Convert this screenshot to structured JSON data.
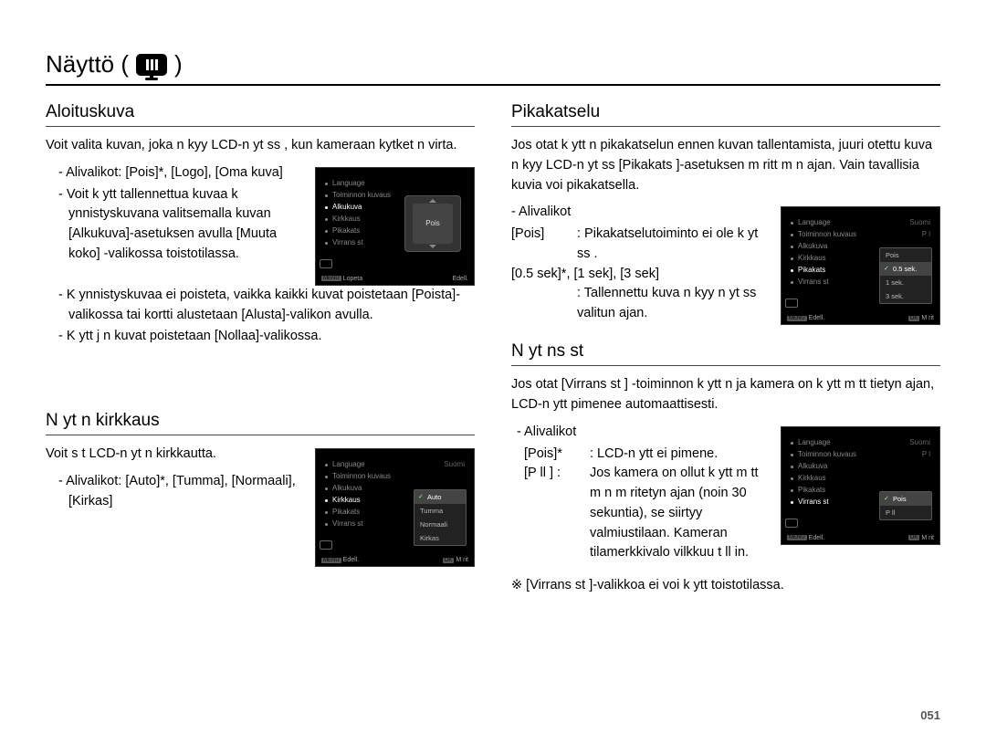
{
  "page": {
    "title_prefix": "Näyttö (",
    "title_suffix": ")",
    "number": "051"
  },
  "left": {
    "sec1": {
      "title": "Aloituskuva",
      "intro": "Voit valita kuvan, joka n kyy LCD-n yt ss , kun kameraan kytket  n virta.",
      "items": [
        "Alivalikot: [Pois]*, [Logo], [Oma kuva]",
        "Voit k ytt   tallennettua kuvaa k ynnistyskuvana valitsemalla kuvan [Alkukuva]-asetuksen avulla [Muuta koko] -valikossa toistotilassa.",
        "K ynnistyskuvaa ei poisteta, vaikka kaikki kuvat poistetaan [Poista]-valikossa tai kortti alustetaan [Alusta]-valikon avulla.",
        "K ytt j n kuvat poistetaan [Nollaa]-valikossa."
      ],
      "lcd": {
        "menu": [
          {
            "label": "Language",
            "val": ""
          },
          {
            "label": "Toiminnon kuvaus",
            "val": ""
          },
          {
            "label": "Alkukuva",
            "val": "",
            "active": true
          },
          {
            "label": "Kirkkaus",
            "val": ""
          },
          {
            "label": "Pikakats",
            "val": ""
          },
          {
            "label": "Virrans  st",
            "val": ""
          }
        ],
        "popup_center": "Pois",
        "bottom": {
          "left": "Lopeta",
          "right": "Edell."
        }
      }
    },
    "sec2": {
      "title": "N yt n kirkkaus",
      "intro": "Voit s  t   LCD-n yt n kirkkautta.",
      "items": [
        "Alivalikot: [Auto]*, [Tumma], [Normaali], [Kirkas]"
      ],
      "lcd": {
        "menu": [
          {
            "label": "Language",
            "val": "Suomi"
          },
          {
            "label": "Toiminnon kuvaus",
            "val": ""
          },
          {
            "label": "Alkukuva",
            "val": ""
          },
          {
            "label": "Kirkkaus",
            "val": "",
            "active": true
          },
          {
            "label": "Pikakats",
            "val": ""
          },
          {
            "label": "Virrans  st",
            "val": ""
          }
        ],
        "popup_list": [
          {
            "label": "Auto",
            "sel": true
          },
          {
            "label": "Tumma"
          },
          {
            "label": "Normaali"
          },
          {
            "label": "Kirkas"
          }
        ],
        "bottom": {
          "left": "Edell.",
          "right": "M  rit"
        }
      }
    }
  },
  "right": {
    "sec1": {
      "title": "Pikakatselu",
      "intro": "Jos otat k ytt  n pikakatselun ennen kuvan tallentamista, juuri otettu kuva n kyy LCD-n yt ss  [Pikakats ]-asetuksen m  ritt m n ajan. Vain tavallisia kuvia voi pikakatsella.",
      "sub_label": "- Alivalikot",
      "rows": [
        {
          "dt": "[Pois]",
          "dd": ": Pikakatselutoiminto ei ole k yt ss ."
        },
        {
          "dt2": "[0.5 sek]*, [1 sek], [3 sek]"
        },
        {
          "dd_only": ": Tallennettu kuva n kyy n yt ss  valitun ajan."
        }
      ],
      "lcd": {
        "menu": [
          {
            "label": "Language",
            "val": "Suomi"
          },
          {
            "label": "Toiminnon kuvaus",
            "val": "P  l"
          },
          {
            "label": "Alkukuva",
            "val": ""
          },
          {
            "label": "Kirkkaus",
            "val": ""
          },
          {
            "label": "Pikakats",
            "val": "",
            "active": true
          },
          {
            "label": "Virrans  st",
            "val": ""
          }
        ],
        "popup_list": [
          {
            "label": "Pois"
          },
          {
            "label": "0.5 sek.",
            "sel": true
          },
          {
            "label": "1 sek."
          },
          {
            "label": "3 sek."
          }
        ],
        "bottom": {
          "left": "Edell.",
          "right": "M  rit"
        }
      }
    },
    "sec2": {
      "title": "N yt ns  st",
      "intro": "Jos otat [Virrans  st  ] -toiminnon k ytt  n ja kamera on k ytt m tt  tietyn ajan, LCD-n ytt  pimenee automaattisesti.",
      "sub_label": "- Alivalikot",
      "rows": [
        {
          "dt": "[Pois]*",
          "dd": ": LCD-n ytt  ei pimene."
        },
        {
          "dt": "[P  ll ] :",
          "dd": "Jos kamera on ollut k ytt m tt m n  m  ritetyn ajan (noin 30 sekuntia), se siirtyy valmiustilaan. Kameran tilamerkkivalo vilkkuu t ll in."
        }
      ],
      "note": "※ [Virrans  st ]-valikkoa ei voi k ytt   toistotilassa.",
      "lcd": {
        "menu": [
          {
            "label": "Language",
            "val": "Suomi"
          },
          {
            "label": "Toiminnon kuvaus",
            "val": "P  l"
          },
          {
            "label": "Alkukuva",
            "val": ""
          },
          {
            "label": "Kirkkaus",
            "val": ""
          },
          {
            "label": "Pikakats",
            "val": ""
          },
          {
            "label": "Virrans  st",
            "val": "",
            "active": true
          }
        ],
        "popup_list": [
          {
            "label": "Pois",
            "sel": true
          },
          {
            "label": "P  ll"
          }
        ],
        "bottom": {
          "left": "Edell.",
          "right": "M  rit"
        }
      }
    }
  }
}
